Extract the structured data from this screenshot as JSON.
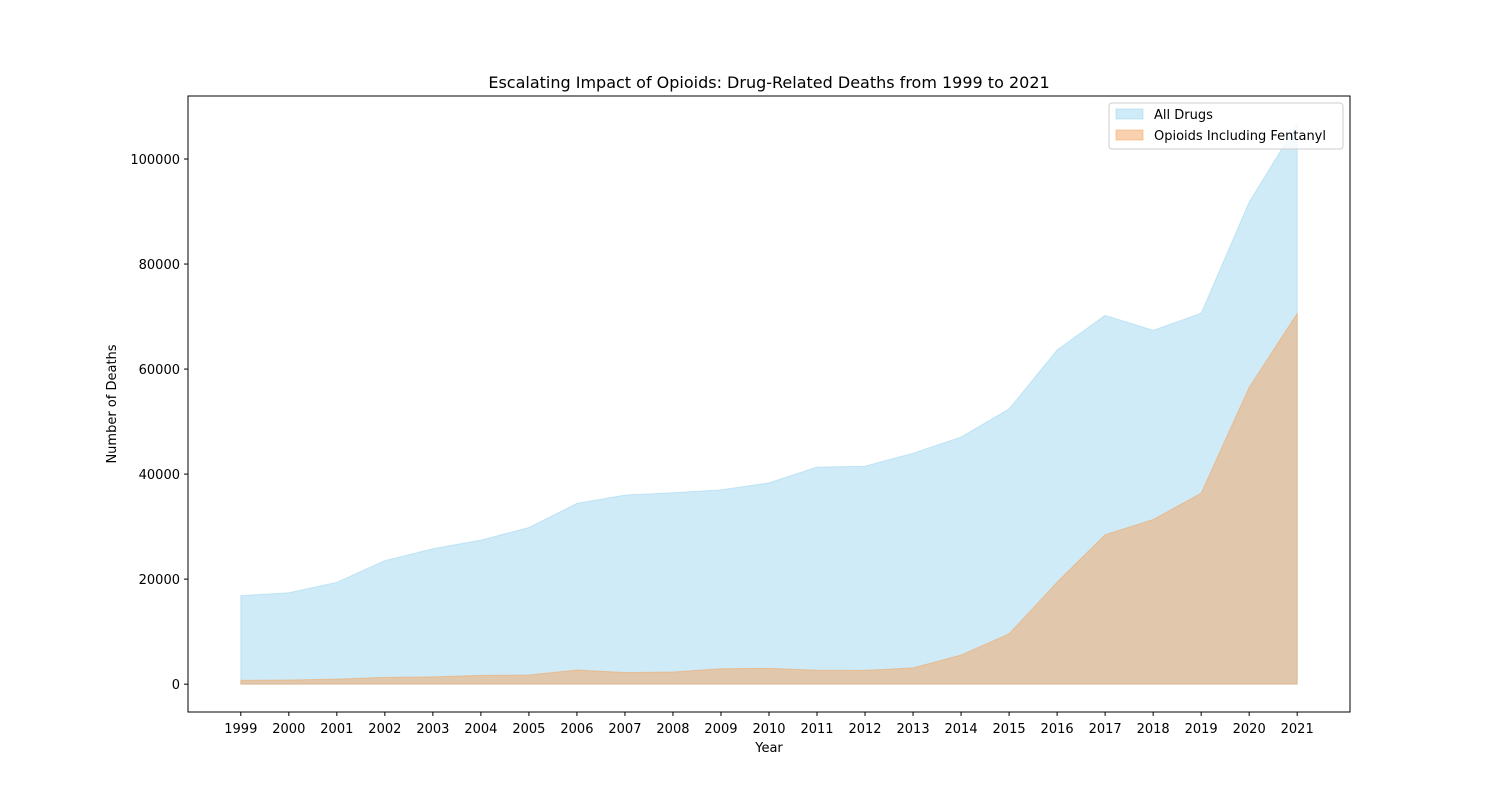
{
  "chart_data": {
    "type": "area",
    "title": "Escalating Impact of Opioids: Drug-Related Deaths from 1999 to 2021",
    "xlabel": "Year",
    "ylabel": "Number of Deaths",
    "x": [
      "1999",
      "2000",
      "2001",
      "2002",
      "2003",
      "2004",
      "2005",
      "2006",
      "2007",
      "2008",
      "2009",
      "2010",
      "2011",
      "2012",
      "2013",
      "2014",
      "2015",
      "2016",
      "2017",
      "2018",
      "2019",
      "2020",
      "2021"
    ],
    "ylim": [
      -5300,
      112000
    ],
    "yticks": [
      0,
      20000,
      40000,
      60000,
      80000,
      100000
    ],
    "ytick_labels": [
      "0",
      "20000",
      "40000",
      "60000",
      "80000",
      "100000"
    ],
    "legend_position": "top-right",
    "grid": false,
    "series": [
      {
        "name": "All Drugs",
        "color": "#87ceeb",
        "opacity": 0.4,
        "values": [
          16849,
          17415,
          19394,
          23518,
          25785,
          27424,
          29813,
          34425,
          36010,
          36450,
          37004,
          38329,
          41340,
          41502,
          43982,
          47055,
          52404,
          63632,
          70237,
          67367,
          70630,
          91799,
          106699
        ]
      },
      {
        "name": "Opioids Including Fentanyl",
        "color": "#f4a460",
        "opacity": 0.5,
        "values": [
          730,
          782,
          957,
          1295,
          1400,
          1664,
          1742,
          2707,
          2213,
          2306,
          2946,
          3007,
          2666,
          2628,
          3105,
          5544,
          9580,
          19413,
          28466,
          31335,
          36359,
          56516,
          70601
        ]
      }
    ]
  }
}
